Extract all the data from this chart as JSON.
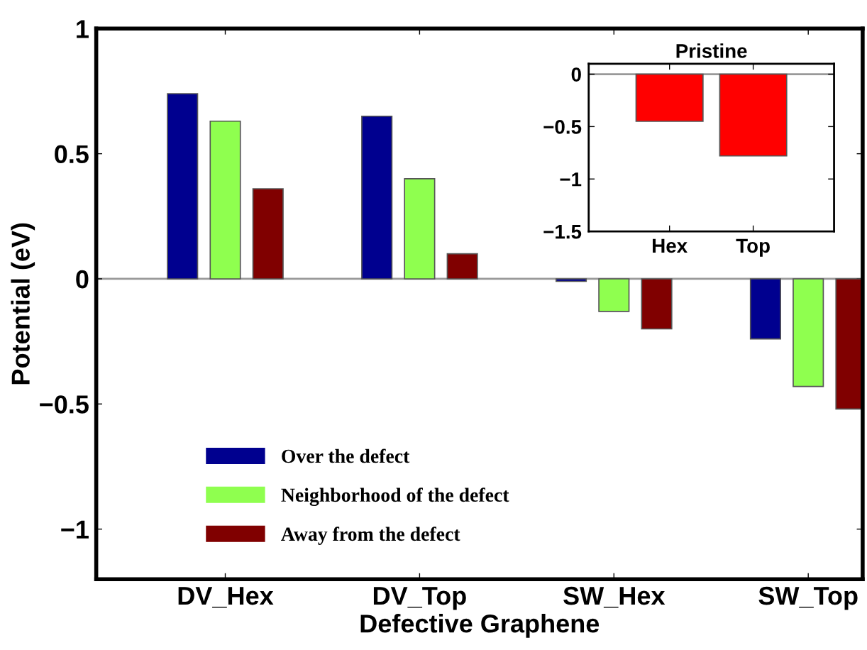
{
  "chart_data": [
    {
      "type": "bar",
      "xlabel": "Defective Graphene",
      "ylabel": "Potential (eV)",
      "categories": [
        "DV_Hex",
        "DV_Top",
        "SW_Hex",
        "SW_Top"
      ],
      "series": [
        {
          "name": "Over the defect",
          "color": "#00008f",
          "values": [
            0.74,
            0.65,
            -0.01,
            -0.24
          ]
        },
        {
          "name": "Neighborhood of the defect",
          "color": "#8fff4f",
          "values": [
            0.63,
            0.4,
            -0.13,
            -0.43
          ]
        },
        {
          "name": "Away from the defect",
          "color": "#800000",
          "values": [
            0.36,
            0.1,
            -0.2,
            -0.52
          ]
        }
      ],
      "ylim": [
        -1.2,
        1
      ],
      "yticks": [
        {
          "value": -1,
          "label": "−1"
        },
        {
          "value": -0.5,
          "label": "−0.5"
        },
        0,
        0.5,
        1
      ],
      "ref_lines": [
        {
          "axis": "y",
          "value": 0,
          "color": "#999999"
        }
      ],
      "legend": "bottom left",
      "grid": false
    },
    {
      "type": "bar",
      "title": "Pristine",
      "categories": [
        "Hex",
        "Top"
      ],
      "values": [
        -0.45,
        -0.78
      ],
      "color": "#ff0000",
      "ylim": [
        -1.5,
        0.1
      ],
      "yticks": [
        {
          "value": -1.5,
          "label": "−1.5"
        },
        {
          "value": -1,
          "label": "−1"
        },
        {
          "value": -0.5,
          "label": "−0.5"
        },
        0
      ],
      "ref_lines": [
        {
          "axis": "y",
          "value": 0,
          "color": "#999999"
        }
      ],
      "grid": false
    }
  ]
}
